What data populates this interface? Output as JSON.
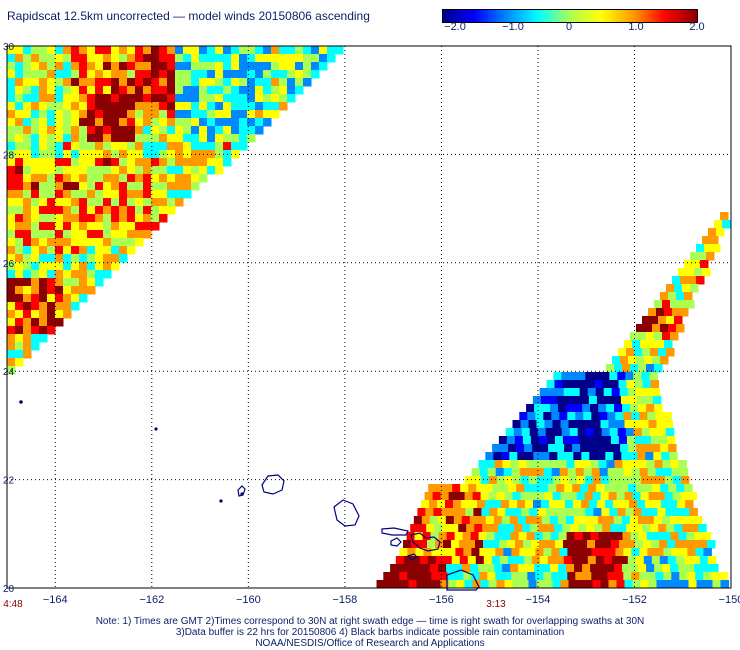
{
  "title": "Rapidscat 12.5km uncorrected — model winds 20150806 ascending",
  "colorbar": {
    "ticks": [
      "−2.0",
      "−1.0",
      "0",
      "1.0",
      "2.0"
    ],
    "tick_values": [
      -2.0,
      -1.0,
      0,
      1.0,
      2.0
    ],
    "stops": [
      "#00008b",
      "#0000ff",
      "#0088ff",
      "#00ffff",
      "#aaff55",
      "#ffff00",
      "#ff9900",
      "#ff0000",
      "#8b0000"
    ]
  },
  "map": {
    "lon_labels": [
      "−164",
      "−162",
      "−160",
      "−158",
      "−156",
      "−154",
      "−152",
      "−150"
    ],
    "lon_values": [
      -164,
      -162,
      -160,
      -158,
      -156,
      -154,
      -152,
      -150
    ],
    "lat_labels": [
      "30",
      "28",
      "26",
      "24",
      "22",
      "20"
    ],
    "lat_values": [
      30,
      28,
      26,
      24,
      22,
      20
    ],
    "lon_range": [
      -165,
      -150
    ],
    "lat_range": [
      20,
      30
    ],
    "grid": "dotted",
    "coastline_color": "#000080"
  },
  "swath_times": [
    {
      "label": "4:48",
      "lon": -165
    },
    {
      "label": "3:13",
      "lon": -155.2
    }
  ],
  "notes": [
    "Note: 1) Times are GMT 2)Times correspond to 30N at right swath edge — time is right swath for overlapping swaths at 30N",
    "3)Data buffer is 22 hrs for 20150806 4) Black barbs indicate possible rain contamination",
    "NOAA/NESDIS/Office of Research and Applications"
  ]
}
